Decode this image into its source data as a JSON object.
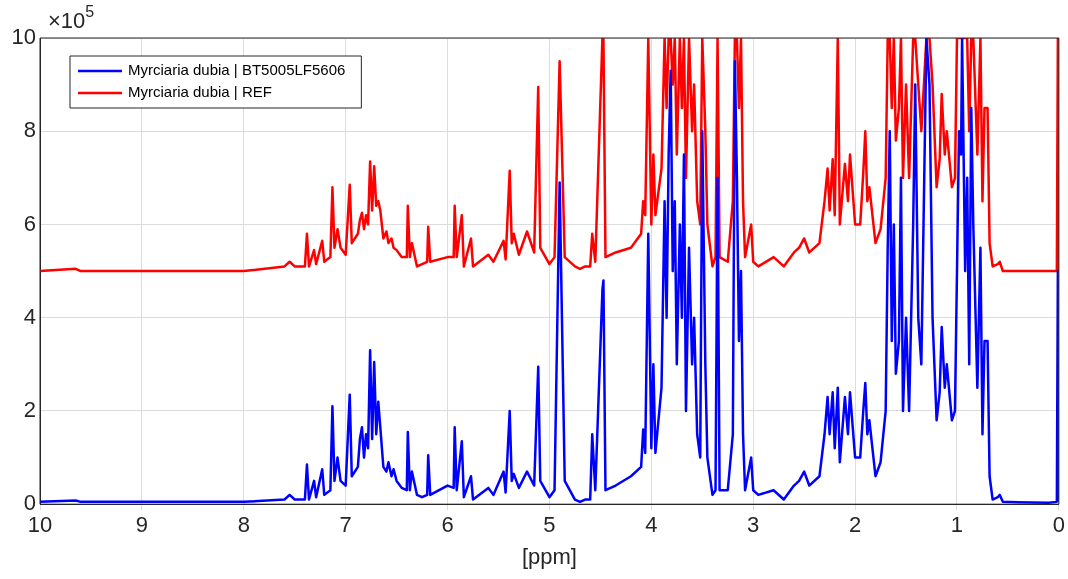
{
  "chart_data": {
    "type": "line",
    "xlabel": "[ppm]",
    "annotations": [
      "×10$^{5}$"
    ],
    "xlim": [
      10,
      0
    ],
    "xticks": [
      10,
      9,
      8,
      7,
      6,
      5,
      4,
      3,
      2,
      1,
      0
    ],
    "ylim": [
      0,
      10
    ],
    "yticks": [
      0,
      2,
      4,
      6,
      8,
      10
    ],
    "grid": true,
    "legend": "top left",
    "x": [
      10,
      9.65,
      9.6,
      8,
      7.6,
      7.55,
      7.5,
      7.4,
      7.38,
      7.36,
      7.31,
      7.29,
      7.23,
      7.21,
      7.15,
      7.13,
      7.11,
      7.08,
      7.05,
      7,
      6.96,
      6.94,
      6.88,
      6.86,
      6.84,
      6.82,
      6.8,
      6.78,
      6.76,
      6.74,
      6.72,
      6.7,
      6.68,
      6.66,
      6.63,
      6.6,
      6.58,
      6.55,
      6.53,
      6.5,
      6.45,
      6.4,
      6.39,
      6.37,
      6.35,
      6.3,
      6.25,
      6.2,
      6.19,
      6.17,
      6,
      5.94,
      5.93,
      5.91,
      5.86,
      5.84,
      5.77,
      5.75,
      5.6,
      5.55,
      5.45,
      5.43,
      5.39,
      5.37,
      5.35,
      5.3,
      5.22,
      5.15,
      5.11,
      5.09,
      5,
      4.95,
      4.9,
      4.85,
      4.75,
      4.7,
      4.65,
      4.6,
      4.58,
      4.55,
      4.48,
      4.47,
      4.45,
      4.35,
      4.2,
      4.1,
      4.08,
      4.06,
      4.03,
      4,
      3.98,
      3.96,
      3.9,
      3.87,
      3.85,
      3.83,
      3.81,
      3.79,
      3.77,
      3.75,
      3.72,
      3.7,
      3.68,
      3.66,
      3.63,
      3.6,
      3.58,
      3.55,
      3.52,
      3.5,
      3.47,
      3.45,
      3.4,
      3.37,
      3.35,
      3.33,
      3.25,
      3.2,
      3.18,
      3.16,
      3.14,
      3.12,
      3.1,
      3.08,
      3.02,
      3,
      2.95,
      2.8,
      2.7,
      2.6,
      2.55,
      2.5,
      2.45,
      2.35,
      2.3,
      2.27,
      2.25,
      2.22,
      2.2,
      2.17,
      2.15,
      2.1,
      2.07,
      2.05,
      2,
      1.95,
      1.92,
      1.9,
      1.88,
      1.86,
      1.8,
      1.75,
      1.7,
      1.68,
      1.66,
      1.64,
      1.62,
      1.6,
      1.57,
      1.55,
      1.53,
      1.5,
      1.47,
      1.43,
      1.41,
      1.38,
      1.35,
      1.3,
      1.27,
      1.24,
      1.2,
      1.17,
      1.15,
      1.12,
      1.1,
      1.05,
      1.02,
      1,
      0.98,
      0.96,
      0.95,
      0.92,
      0.9,
      0.88,
      0.86,
      0.84,
      0.8,
      0.77,
      0.75,
      0.73,
      0.7,
      0.68,
      0.65,
      0.6,
      0.58,
      0.55,
      0.1,
      0.02,
      0.01,
      0
    ],
    "series": [
      {
        "name": "Myrciaria dubia | BT5005LF5606",
        "color": "#0000ff",
        "values": [
          0.05,
          0.08,
          0.05,
          0.05,
          0.1,
          0.2,
          0.1,
          0.1,
          0.85,
          0.1,
          0.5,
          0.15,
          0.75,
          0.2,
          0.3,
          2.1,
          0.5,
          1,
          0.5,
          0.4,
          2.35,
          0.6,
          0.8,
          1.4,
          1.65,
          1,
          1.5,
          1.2,
          3.3,
          1.4,
          3.05,
          1.5,
          2.2,
          1.65,
          0.8,
          0.7,
          0.9,
          0.6,
          0.75,
          0.5,
          0.35,
          0.3,
          1.55,
          0.3,
          0.7,
          0.2,
          0.15,
          0.2,
          1.05,
          0.2,
          0.4,
          0.35,
          1.65,
          0.3,
          1.35,
          0.15,
          0.6,
          0.1,
          0.35,
          0.2,
          0.7,
          0.25,
          2,
          0.5,
          0.65,
          0.35,
          0.7,
          0.4,
          2.95,
          0.5,
          0.15,
          0.3,
          6.9,
          0.5,
          0.1,
          0.05,
          0.1,
          0.1,
          1.5,
          0.3,
          4.6,
          4.8,
          0.3,
          0.4,
          0.6,
          0.8,
          1.6,
          1.1,
          5.8,
          1.2,
          3,
          1.1,
          2.5,
          6.5,
          4,
          7.5,
          9.3,
          5,
          6.5,
          3,
          6,
          4,
          7.5,
          2,
          5.5,
          3,
          4,
          1.5,
          1,
          8,
          3,
          1,
          0.2,
          0.3,
          7,
          0.3,
          0.3,
          1.5,
          9.5,
          7,
          3.5,
          5,
          1.5,
          0.3,
          1,
          0.3,
          0.2,
          0.3,
          0.1,
          0.4,
          0.5,
          0.7,
          0.4,
          0.6,
          1.5,
          2.3,
          1.5,
          2.4,
          1.2,
          2.5,
          0.9,
          2.3,
          1.5,
          2.4,
          1,
          1,
          2,
          2.6,
          1.5,
          1.8,
          0.6,
          0.9,
          2,
          5.5,
          8,
          3.5,
          6,
          2.8,
          3.5,
          7,
          2,
          4,
          2,
          6,
          9,
          4,
          3,
          10,
          9,
          4,
          1.8,
          2.4,
          3.8,
          2.5,
          3,
          1.8,
          2,
          5,
          8,
          7.5,
          10,
          5,
          7,
          3,
          8.5,
          6,
          2.5,
          5.5,
          1.5,
          3.5,
          3.5,
          0.6,
          0.1,
          0.15,
          0.2,
          0.05,
          0.03,
          0.05,
          5,
          0.05
        ]
      },
      {
        "name": "Myrciaria dubia | REF",
        "color": "#ff0000",
        "values": [
          5,
          5.05,
          5,
          5,
          5.1,
          5.2,
          5.1,
          5.1,
          5.8,
          5.1,
          5.45,
          5.15,
          5.65,
          5.2,
          5.3,
          6.8,
          5.5,
          5.9,
          5.5,
          5.35,
          6.85,
          5.6,
          5.8,
          6.1,
          6.25,
          5.9,
          6.2,
          6,
          7.35,
          6.3,
          7.25,
          6.4,
          6.5,
          6.3,
          5.7,
          5.85,
          5.6,
          5.7,
          5.5,
          5.45,
          5.3,
          5.3,
          6.4,
          5.3,
          5.6,
          5.1,
          5.15,
          5.2,
          5.95,
          5.2,
          5.3,
          5.3,
          6.4,
          5.3,
          6.2,
          5.1,
          5.7,
          5.1,
          5.35,
          5.2,
          5.65,
          5.25,
          7.15,
          5.6,
          5.8,
          5.35,
          5.85,
          5.4,
          8.95,
          5.5,
          5.15,
          5.3,
          9.5,
          5.3,
          5.1,
          5.05,
          5.1,
          5.1,
          5.8,
          5.2,
          10,
          10,
          5.3,
          5.4,
          5.5,
          5.8,
          6.5,
          6.2,
          10,
          6,
          7.5,
          6.2,
          7.2,
          10,
          8.5,
          10,
          10,
          9,
          10,
          7.5,
          10,
          8.5,
          10,
          7,
          10,
          8,
          9,
          6.5,
          6,
          10,
          8,
          6,
          5.1,
          5.3,
          10,
          5.3,
          5.2,
          6.5,
          10,
          10,
          8.5,
          10,
          6.5,
          5.3,
          6,
          5.2,
          5.1,
          5.3,
          5.1,
          5.4,
          5.5,
          5.7,
          5.4,
          5.6,
          6.5,
          7.2,
          6.3,
          7.4,
          6.2,
          10,
          6,
          7.3,
          6.5,
          7.5,
          6,
          6,
          7.1,
          8,
          6.5,
          6.8,
          5.6,
          5.9,
          7,
          10,
          10,
          8.5,
          10,
          7.8,
          8.5,
          10,
          7,
          9,
          7,
          10,
          10,
          9,
          8,
          10,
          10,
          9,
          6.8,
          7.4,
          8.8,
          7.5,
          8,
          6.8,
          7,
          10,
          10,
          10,
          10,
          10,
          10,
          8,
          10,
          10,
          7.5,
          10,
          6.5,
          8.5,
          8.5,
          5.6,
          5.1,
          5.15,
          5.2,
          5,
          5,
          5,
          10,
          5
        ]
      }
    ]
  }
}
